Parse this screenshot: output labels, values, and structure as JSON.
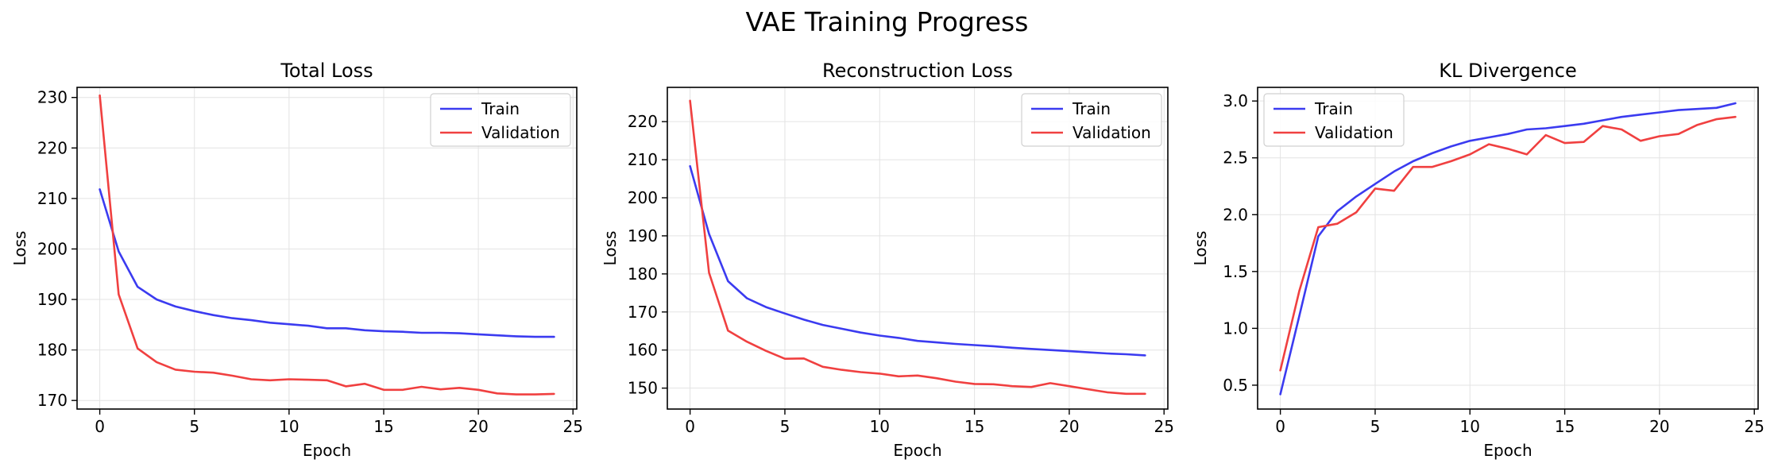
{
  "figure": {
    "title": "VAE Training Progress"
  },
  "colors": {
    "train": "#3b3bf0",
    "validation": "#f04040",
    "grid": "#e3e3e3",
    "axis": "#000000"
  },
  "chart_data": [
    {
      "type": "line",
      "title": "Total Loss",
      "xlabel": "Epoch",
      "ylabel": "Loss",
      "xlim": [
        -1.2,
        25.2
      ],
      "ylim": [
        168.3,
        232.0
      ],
      "xticks": [
        0,
        5,
        10,
        15,
        20,
        25
      ],
      "yticks": [
        170,
        180,
        190,
        200,
        210,
        220,
        230
      ],
      "ytick_labels": [
        "170",
        "180",
        "190",
        "200",
        "210",
        "220",
        "230"
      ],
      "grid": true,
      "legend": "top-right",
      "x": [
        0,
        1,
        2,
        3,
        4,
        5,
        6,
        7,
        8,
        9,
        10,
        11,
        12,
        13,
        14,
        15,
        16,
        17,
        18,
        19,
        20,
        21,
        22,
        23,
        24
      ],
      "series": [
        {
          "name": "Train",
          "color_key": "train",
          "values": [
            211.8,
            199.5,
            192.5,
            190.0,
            188.6,
            187.7,
            186.9,
            186.3,
            185.9,
            185.4,
            185.1,
            184.8,
            184.3,
            184.3,
            183.9,
            183.7,
            183.6,
            183.4,
            183.4,
            183.3,
            183.1,
            182.9,
            182.7,
            182.6,
            182.6
          ]
        },
        {
          "name": "Validation",
          "color_key": "validation",
          "values": [
            230.4,
            191.0,
            180.3,
            177.6,
            176.1,
            175.7,
            175.5,
            174.9,
            174.2,
            174.0,
            174.2,
            174.1,
            174.0,
            172.8,
            173.3,
            172.1,
            172.1,
            172.7,
            172.2,
            172.5,
            172.1,
            171.4,
            171.2,
            171.2,
            171.3
          ]
        }
      ]
    },
    {
      "type": "line",
      "title": "Reconstruction Loss",
      "xlabel": "Epoch",
      "ylabel": "Loss",
      "xlim": [
        -1.2,
        25.2
      ],
      "ylim": [
        144.5,
        229.0
      ],
      "xticks": [
        0,
        5,
        10,
        15,
        20,
        25
      ],
      "yticks": [
        150,
        160,
        170,
        180,
        190,
        200,
        210,
        220
      ],
      "ytick_labels": [
        "150",
        "160",
        "170",
        "180",
        "190",
        "200",
        "210",
        "220"
      ],
      "grid": true,
      "legend": "top-right",
      "x": [
        0,
        1,
        2,
        3,
        4,
        5,
        6,
        7,
        8,
        9,
        10,
        11,
        12,
        13,
        14,
        15,
        16,
        17,
        18,
        19,
        20,
        21,
        22,
        23,
        24
      ],
      "series": [
        {
          "name": "Train",
          "color_key": "train",
          "values": [
            208.3,
            190.5,
            178.1,
            173.6,
            171.3,
            169.6,
            168.0,
            166.6,
            165.6,
            164.6,
            163.8,
            163.2,
            162.4,
            162.0,
            161.6,
            161.3,
            161.0,
            160.6,
            160.3,
            160.0,
            159.7,
            159.4,
            159.1,
            158.9,
            158.6
          ]
        },
        {
          "name": "Validation",
          "color_key": "validation",
          "values": [
            225.5,
            180.3,
            165.1,
            162.2,
            159.8,
            157.7,
            157.8,
            155.6,
            154.8,
            154.2,
            153.8,
            153.1,
            153.3,
            152.6,
            151.7,
            151.1,
            151.0,
            150.5,
            150.3,
            151.3,
            150.5,
            149.7,
            148.9,
            148.5,
            148.5
          ]
        }
      ]
    },
    {
      "type": "line",
      "title": "KL Divergence",
      "xlabel": "Epoch",
      "ylabel": "Loss",
      "xlim": [
        -1.2,
        25.2
      ],
      "ylim": [
        0.29,
        3.12
      ],
      "xticks": [
        0,
        5,
        10,
        15,
        20,
        25
      ],
      "yticks": [
        0.5,
        1.0,
        1.5,
        2.0,
        2.5,
        3.0
      ],
      "ytick_labels": [
        "0.5",
        "1.0",
        "1.5",
        "2.0",
        "2.5",
        "3.0"
      ],
      "grid": true,
      "legend": "top-left",
      "x": [
        0,
        1,
        2,
        3,
        4,
        5,
        6,
        7,
        8,
        9,
        10,
        11,
        12,
        13,
        14,
        15,
        16,
        17,
        18,
        19,
        20,
        21,
        22,
        23,
        24
      ],
      "series": [
        {
          "name": "Train",
          "color_key": "train",
          "values": [
            0.42,
            1.11,
            1.81,
            2.03,
            2.16,
            2.27,
            2.38,
            2.47,
            2.54,
            2.6,
            2.65,
            2.68,
            2.71,
            2.75,
            2.76,
            2.78,
            2.8,
            2.83,
            2.86,
            2.88,
            2.9,
            2.92,
            2.93,
            2.94,
            2.98
          ]
        },
        {
          "name": "Validation",
          "color_key": "validation",
          "values": [
            0.63,
            1.33,
            1.89,
            1.92,
            2.02,
            2.23,
            2.21,
            2.42,
            2.42,
            2.47,
            2.53,
            2.62,
            2.58,
            2.53,
            2.7,
            2.63,
            2.64,
            2.78,
            2.75,
            2.65,
            2.69,
            2.71,
            2.79,
            2.84,
            2.86
          ]
        }
      ]
    }
  ]
}
